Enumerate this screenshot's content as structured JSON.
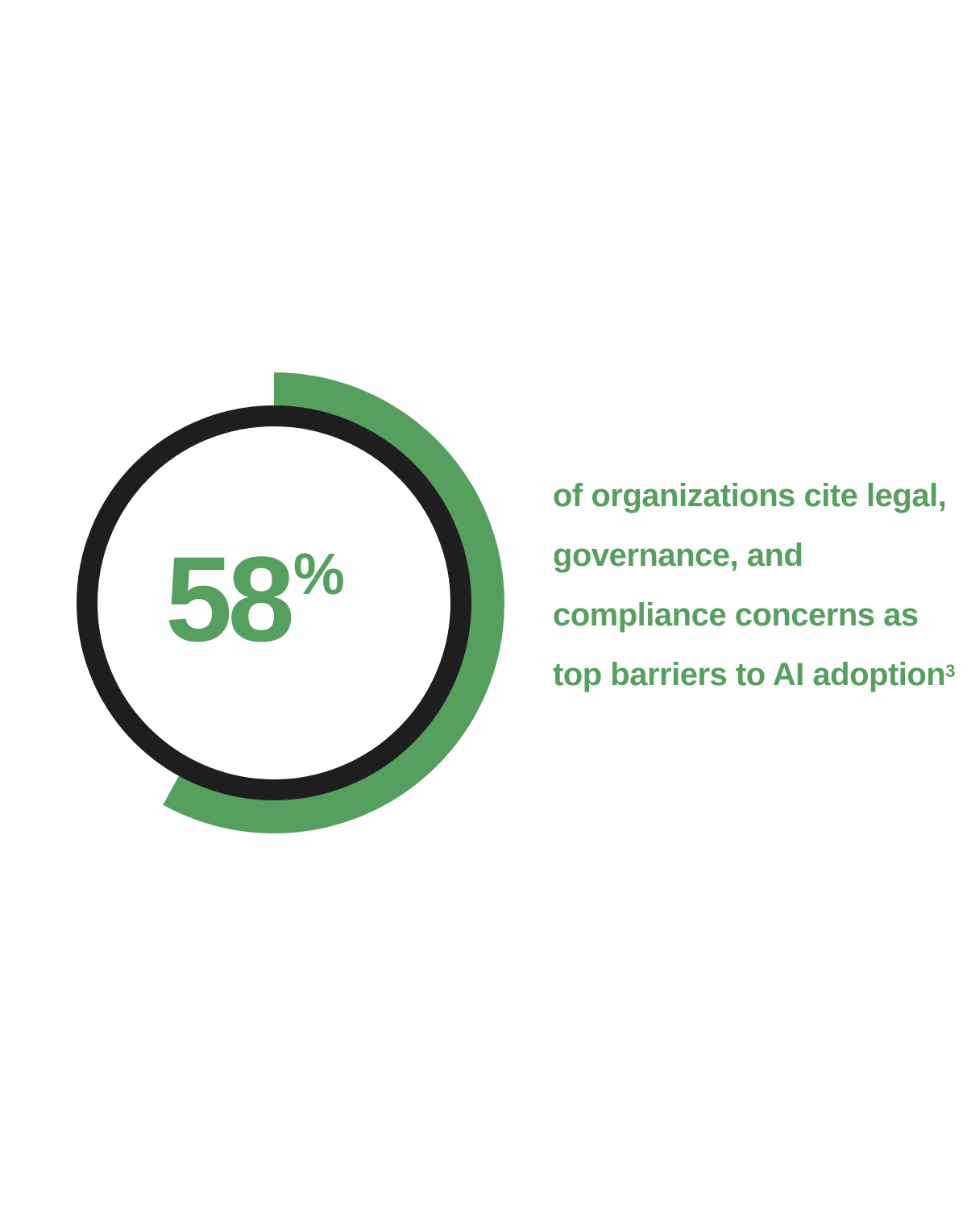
{
  "chart_data": {
    "type": "pie",
    "style": "progress-ring",
    "value": 58,
    "max": 100,
    "value_label": "58",
    "unit_label": "%",
    "description": "of organizations cite legal, governance, and compliance concerns as top barriers to AI adoption",
    "footnote_marker": "3"
  },
  "colors": {
    "accent": "#55a05e",
    "ring": "#1e1e1e",
    "background": "#ffffff"
  }
}
